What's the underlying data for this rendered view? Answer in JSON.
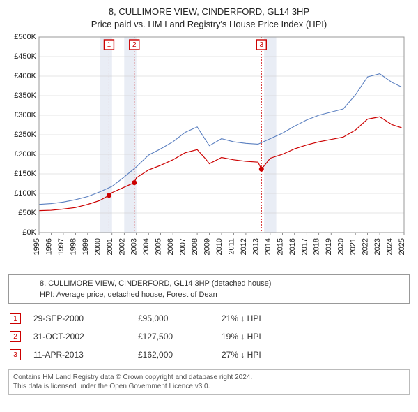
{
  "title_line1": "8, CULLIMORE VIEW, CINDERFORD, GL14 3HP",
  "title_line2": "Price paid vs. HM Land Registry's House Price Index (HPI)",
  "chart": {
    "background_color": "#ffffff",
    "border_color": "#999999",
    "grid_color": "#cccccc",
    "y_label_color": "#222222",
    "x_label_color": "#222222",
    "label_fontsize": 11,
    "marker_bands": [
      {
        "x": 2000.0,
        "w": 1.0,
        "color": "#e9edf5"
      },
      {
        "x": 2002.0,
        "w": 1.0,
        "color": "#e9edf5"
      },
      {
        "x": 2013.5,
        "w": 1.0,
        "color": "#e9edf5"
      }
    ],
    "marker_lines": [
      {
        "x": 2000.75,
        "color": "#cc0000",
        "label": "1"
      },
      {
        "x": 2002.83,
        "color": "#cc0000",
        "label": "2"
      },
      {
        "x": 2013.28,
        "color": "#cc0000",
        "label": "3"
      }
    ],
    "x_min": 1995,
    "x_max": 2025,
    "x_ticks": [
      1995,
      1996,
      1997,
      1998,
      1999,
      2000,
      2001,
      2002,
      2003,
      2004,
      2005,
      2006,
      2007,
      2008,
      2009,
      2010,
      2011,
      2012,
      2013,
      2014,
      2015,
      2016,
      2017,
      2018,
      2019,
      2020,
      2021,
      2022,
      2023,
      2024,
      2025
    ],
    "y_min": 0,
    "y_max": 500000,
    "y_tick_step": 50000,
    "y_prefix": "£",
    "y_suffix": "K",
    "y_divisor": 1000,
    "series": [
      {
        "name": "8, CULLIMORE VIEW, CINDERFORD, GL14 3HP (detached house)",
        "color": "#cc0000",
        "line_width": 1.2,
        "points": [
          [
            1995,
            56000
          ],
          [
            1996,
            57000
          ],
          [
            1997,
            60000
          ],
          [
            1998,
            64000
          ],
          [
            1999,
            72000
          ],
          [
            2000,
            82000
          ],
          [
            2000.75,
            95000
          ],
          [
            2001,
            102000
          ],
          [
            2002,
            116000
          ],
          [
            2002.83,
            127500
          ],
          [
            2003,
            140000
          ],
          [
            2004,
            160000
          ],
          [
            2005,
            172000
          ],
          [
            2006,
            186000
          ],
          [
            2007,
            204000
          ],
          [
            2008,
            212000
          ],
          [
            2008.7,
            188000
          ],
          [
            2009,
            176000
          ],
          [
            2010,
            192000
          ],
          [
            2011,
            186000
          ],
          [
            2012,
            182000
          ],
          [
            2013,
            180000
          ],
          [
            2013.28,
            162000
          ],
          [
            2014,
            190000
          ],
          [
            2015,
            200000
          ],
          [
            2016,
            214000
          ],
          [
            2017,
            224000
          ],
          [
            2018,
            232000
          ],
          [
            2019,
            238000
          ],
          [
            2020,
            244000
          ],
          [
            2021,
            262000
          ],
          [
            2022,
            290000
          ],
          [
            2023,
            296000
          ],
          [
            2024,
            276000
          ],
          [
            2024.8,
            268000
          ]
        ],
        "markers": [
          {
            "x": 2000.75,
            "y": 95000
          },
          {
            "x": 2002.83,
            "y": 127500
          },
          {
            "x": 2013.28,
            "y": 162000
          }
        ]
      },
      {
        "name": "HPI: Average price, detached house, Forest of Dean",
        "color": "#5a7fc0",
        "line_width": 1.1,
        "points": [
          [
            1995,
            72000
          ],
          [
            1996,
            74000
          ],
          [
            1997,
            78000
          ],
          [
            1998,
            84000
          ],
          [
            1999,
            92000
          ],
          [
            2000,
            104000
          ],
          [
            2001,
            118000
          ],
          [
            2002,
            142000
          ],
          [
            2003,
            168000
          ],
          [
            2004,
            198000
          ],
          [
            2005,
            214000
          ],
          [
            2006,
            232000
          ],
          [
            2007,
            256000
          ],
          [
            2008,
            270000
          ],
          [
            2008.7,
            236000
          ],
          [
            2009,
            222000
          ],
          [
            2010,
            240000
          ],
          [
            2011,
            232000
          ],
          [
            2012,
            228000
          ],
          [
            2013,
            226000
          ],
          [
            2014,
            240000
          ],
          [
            2015,
            254000
          ],
          [
            2016,
            272000
          ],
          [
            2017,
            288000
          ],
          [
            2018,
            300000
          ],
          [
            2019,
            308000
          ],
          [
            2020,
            316000
          ],
          [
            2021,
            352000
          ],
          [
            2022,
            398000
          ],
          [
            2023,
            406000
          ],
          [
            2024,
            384000
          ],
          [
            2024.8,
            372000
          ]
        ]
      }
    ]
  },
  "legend": [
    {
      "color": "#cc0000",
      "label": "8, CULLIMORE VIEW, CINDERFORD, GL14 3HP (detached house)"
    },
    {
      "color": "#5a7fc0",
      "label": "HPI: Average price, detached house, Forest of Dean"
    }
  ],
  "transactions": [
    {
      "n": "1",
      "date": "29-SEP-2000",
      "price": "£95,000",
      "diff": "21% ↓ HPI"
    },
    {
      "n": "2",
      "date": "31-OCT-2002",
      "price": "£127,500",
      "diff": "19% ↓ HPI"
    },
    {
      "n": "3",
      "date": "11-APR-2013",
      "price": "£162,000",
      "diff": "27% ↓ HPI"
    }
  ],
  "footer_line1": "Contains HM Land Registry data © Crown copyright and database right 2024.",
  "footer_line2": "This data is licensed under the Open Government Licence v3.0."
}
